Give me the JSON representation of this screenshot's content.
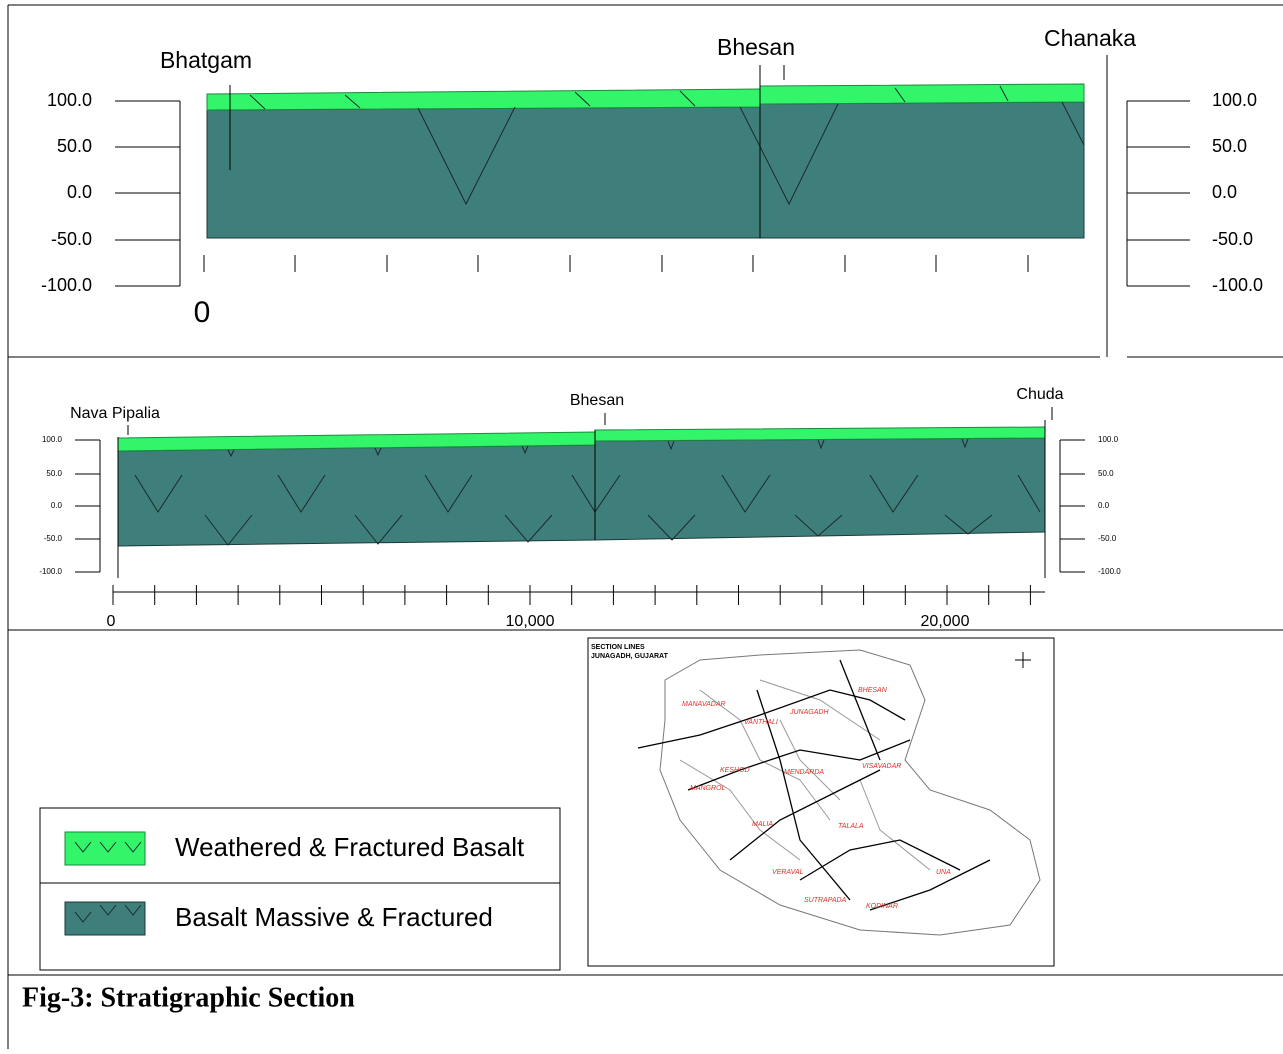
{
  "section_1": {
    "wells": [
      "Bhatgam",
      "Bhesan",
      "Chanaka"
    ],
    "left_axis": [
      "100.0",
      "50.0",
      "0.0",
      "-50.0",
      "-100.0"
    ],
    "right_axis": [
      "100.0",
      "50.0",
      "0.0",
      "-50.0",
      "-100.0"
    ],
    "x_axis": [
      "0"
    ]
  },
  "section_2": {
    "wells": [
      "Nava Pipalia",
      "Bhesan",
      "Chuda"
    ],
    "left_axis": [
      "100.0",
      "50.0",
      "0.0",
      "-50.0",
      "-100.0"
    ],
    "right_axis": [
      "100.0",
      "50.0",
      "0.0",
      "-50.0",
      "-100.0"
    ],
    "x_axis": [
      "0",
      "10,000",
      "20,000"
    ]
  },
  "legend": [
    "Weathered & Fractured Basalt",
    "Basalt Massive & Fractured"
  ],
  "map": {
    "title": [
      "SECTION LINES",
      "JUNAGADH, GUJARAT"
    ],
    "districts": [
      "MANAVADAR",
      "VANTHALI",
      "JUNAGADH",
      "BHESAN",
      "KESHOD",
      "MENDARDA",
      "VISAVADAR",
      "MANGROL",
      "MALIA",
      "TALALA",
      "VERAVAL",
      "SUTRAPADA",
      "KODINAR",
      "UNA"
    ]
  },
  "caption": "Fig-3: Stratigraphic Section"
}
